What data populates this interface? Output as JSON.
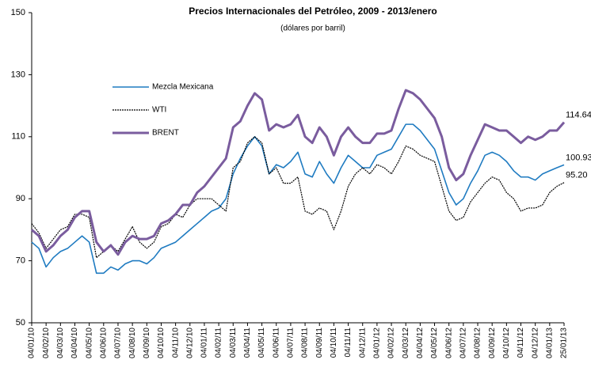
{
  "chart_data": {
    "type": "line",
    "title": "Precios Internacionales del Petróleo, 2009 - 2013/enero",
    "subtitle": "(dólares por barril)",
    "categories": [
      "04/01/10",
      null,
      "04/02/10",
      null,
      "04/03/10",
      null,
      "04/04/10",
      null,
      "04/05/10",
      null,
      "04/06/10",
      null,
      "04/07/10",
      null,
      "04/08/10",
      null,
      "04/09/10",
      null,
      "04/10/10",
      null,
      "04/11/10",
      null,
      "04/12/10",
      null,
      "04/01/11",
      null,
      "04/02/11",
      null,
      "04/03/11",
      null,
      "04/04/11",
      null,
      "04/05/11",
      null,
      "04/06/11",
      null,
      "04/07/11",
      null,
      "04/08/11",
      null,
      "04/09/11",
      null,
      "04/10/11",
      null,
      "04/11/11",
      null,
      "04/12/11",
      null,
      "04/01/12",
      null,
      "04/02/12",
      null,
      "04/03/12",
      null,
      "04/04/12",
      null,
      "04/05/12",
      null,
      "04/06/12",
      null,
      "04/07/12",
      null,
      "04/08/12",
      null,
      "04/09/12",
      null,
      "04/10/12",
      null,
      "04/11/12",
      null,
      "04/12/12",
      null,
      "04/01/13",
      null,
      "25/01/13"
    ],
    "series": [
      {
        "name": "Mezcla Mexicana",
        "color": "#1f7bc1",
        "width": 1.6,
        "dash": null,
        "values": [
          76,
          74,
          68,
          71,
          73,
          74,
          76,
          78,
          76,
          66,
          66,
          68,
          67,
          69,
          70,
          70,
          69,
          71,
          74,
          75,
          76,
          78,
          80,
          82,
          84,
          86,
          87,
          90,
          98,
          103,
          107,
          110,
          107,
          98,
          101,
          100,
          102,
          105,
          98,
          97,
          102,
          98,
          95,
          100,
          104,
          102,
          100,
          100,
          104,
          105,
          106,
          110,
          114,
          114,
          112,
          109,
          106,
          99,
          92,
          88,
          90,
          95,
          99,
          104,
          105,
          104,
          102,
          99,
          97,
          97,
          96,
          98,
          99,
          100,
          100.93
        ]
      },
      {
        "name": "WTI",
        "color": "#000000",
        "width": 1.2,
        "dash": "2 1",
        "values": [
          82,
          79,
          74,
          77,
          80,
          81,
          85,
          85,
          84,
          71,
          73,
          75,
          73,
          77,
          81,
          76,
          74,
          76,
          81,
          82,
          85,
          84,
          88,
          90,
          90,
          90,
          88,
          86,
          100,
          102,
          108,
          110,
          108,
          98,
          100,
          95,
          95,
          97,
          86,
          85,
          87,
          86,
          80,
          86,
          94,
          98,
          100,
          98,
          101,
          100,
          98,
          102,
          107,
          106,
          104,
          103,
          102,
          94,
          86,
          83,
          84,
          89,
          92,
          95,
          97,
          96,
          92,
          90,
          86,
          87,
          87,
          88,
          92,
          94,
          95.2
        ],
        "value_labels": [
          null,
          null,
          null,
          null,
          null,
          null,
          null,
          null,
          null,
          null,
          null,
          null,
          null,
          null,
          null,
          null,
          null,
          null,
          null,
          null,
          null,
          null,
          null,
          null,
          null,
          null,
          null,
          null,
          null,
          null,
          null,
          null,
          null,
          null,
          null,
          null,
          null,
          null,
          null,
          null,
          null,
          null,
          null,
          null,
          null,
          null,
          null,
          null,
          null,
          null,
          null,
          null,
          null,
          null,
          null,
          null,
          null,
          null,
          null,
          null,
          null,
          null,
          null,
          null,
          null,
          null,
          null,
          null,
          null,
          null,
          null,
          null,
          null,
          null,
          "95.20"
        ]
      },
      {
        "name": "BRENT",
        "color": "#7a5c9e",
        "width": 3,
        "dash": null,
        "values": [
          80,
          78,
          73,
          75,
          78,
          80,
          84,
          86,
          86,
          76,
          73,
          75,
          72,
          76,
          78,
          77,
          77,
          78,
          82,
          83,
          85,
          88,
          88,
          92,
          94,
          97,
          100,
          103,
          113,
          115,
          120,
          124,
          122,
          112,
          114,
          113,
          114,
          117,
          110,
          108,
          113,
          110,
          104,
          110,
          113,
          110,
          108,
          108,
          111,
          111,
          112,
          119,
          125,
          124,
          122,
          119,
          116,
          110,
          100,
          96,
          98,
          104,
          109,
          114,
          113,
          112,
          112,
          110,
          108,
          110,
          109,
          110,
          112,
          112,
          114.64
        ]
      }
    ],
    "ylim": [
      50,
      150
    ],
    "yticks": [
      50,
      70,
      90,
      110,
      130,
      150
    ],
    "grid": false,
    "legend": "upper left"
  }
}
